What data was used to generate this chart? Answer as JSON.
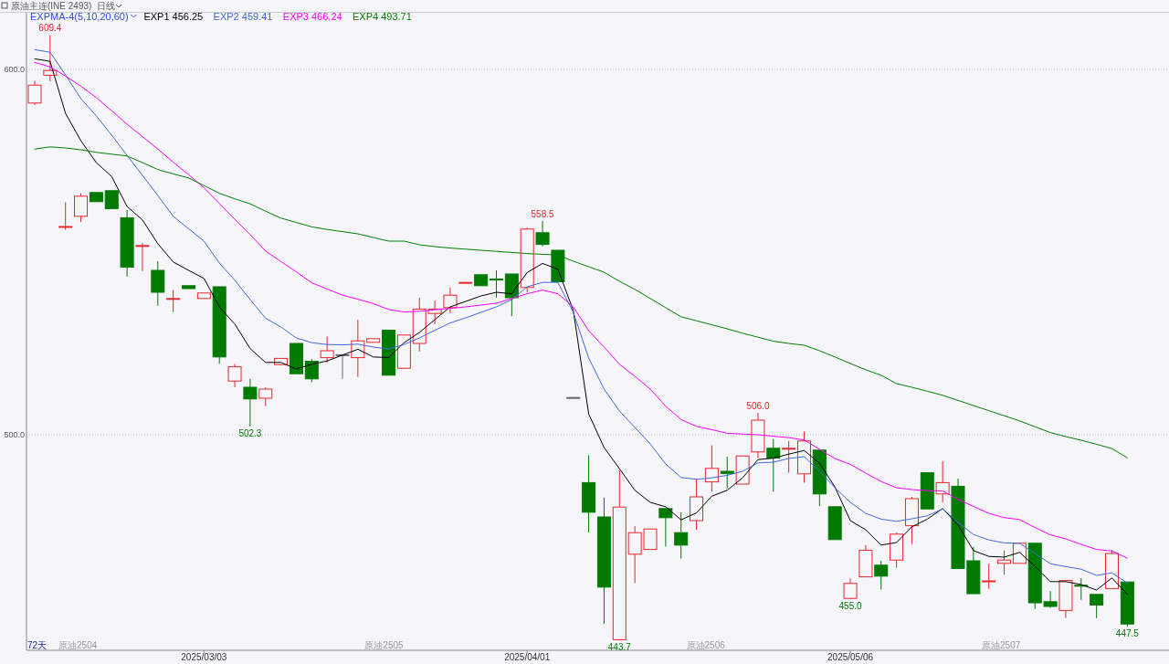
{
  "chart_data": {
    "type": "candlestick",
    "title": "原油主连(INE 2493)",
    "subtitle": "日线",
    "legend_title": "EXPMA-4(5,10,20,60)",
    "legend": "top left",
    "grid": "y",
    "categories": [
      null,
      null,
      null,
      null,
      null,
      null,
      null,
      null,
      null,
      null,
      null,
      "2025/03/03",
      null,
      null,
      null,
      null,
      null,
      null,
      null,
      null,
      null,
      null,
      null,
      null,
      null,
      null,
      null,
      null,
      null,
      null,
      null,
      null,
      "2025/04/01",
      null,
      null,
      null,
      null,
      null,
      null,
      null,
      null,
      null,
      null,
      null,
      null,
      null,
      null,
      null,
      null,
      null,
      null,
      null,
      null,
      "2025/05/06",
      null,
      null,
      null,
      null,
      null,
      null,
      null,
      null,
      null,
      null,
      null,
      null,
      null,
      null,
      null,
      null,
      null,
      null
    ],
    "ylim": [
      441,
      615.5
    ],
    "yticks": [
      {
        "value": 500,
        "label": "500.0"
      },
      {
        "value": 600,
        "label": "600.0"
      }
    ],
    "ohlc": [
      [
        590.8,
        596.9,
        590.3,
        595.7
      ],
      [
        598.4,
        609.4,
        596.7,
        599.7
      ],
      [
        556.8,
        563.6,
        556.1,
        557.0
      ],
      [
        559.8,
        566.1,
        558.2,
        565.3
      ],
      [
        566.3,
        566.3,
        563.8,
        563.8
      ],
      [
        566.8,
        566.8,
        561.9,
        561.9
      ],
      [
        559.4,
        561.5,
        543.3,
        545.9
      ],
      [
        551.7,
        552.5,
        544.8,
        551.8
      ],
      [
        545.0,
        547.5,
        535.3,
        539.0
      ],
      [
        537.1,
        539.6,
        533.6,
        537.3
      ],
      [
        540.8,
        540.8,
        540.0,
        540.0
      ],
      [
        537.3,
        538.8,
        537.3,
        538.8
      ],
      [
        540.5,
        540.5,
        519.4,
        521.3
      ],
      [
        514.7,
        519.4,
        513.0,
        518.6
      ],
      [
        513.0,
        515.3,
        502.3,
        509.8
      ],
      [
        510.0,
        513.0,
        507.8,
        512.5
      ],
      [
        519.2,
        521.0,
        519.0,
        520.9
      ],
      [
        525.0,
        525.0,
        516.7,
        516.7
      ],
      [
        520.1,
        520.7,
        514.4,
        515.3
      ],
      [
        521.1,
        526.9,
        519.8,
        523.0
      ],
      [
        521.9,
        521.9,
        515.3,
        521.9
      ],
      [
        521.1,
        531.5,
        515.8,
        525.7
      ],
      [
        525.3,
        526.3,
        525.3,
        526.3
      ],
      [
        528.6,
        528.6,
        516.3,
        516.3
      ],
      [
        518.2,
        527.3,
        518.0,
        527.3
      ],
      [
        525.0,
        537.5,
        522.8,
        534.4
      ],
      [
        533.2,
        536.7,
        530.3,
        534.4
      ],
      [
        534.8,
        540.3,
        533.3,
        538.2
      ],
      [
        541.6,
        541.8,
        541.5,
        541.7
      ],
      [
        543.8,
        543.8,
        540.8,
        540.8
      ],
      [
        542.6,
        545.0,
        537.5,
        542.5
      ],
      [
        544.0,
        544.0,
        532.5,
        537.5
      ],
      [
        540.3,
        556.7,
        539.0,
        556.3
      ],
      [
        555.3,
        558.5,
        551.5,
        552.1
      ],
      [
        550.5,
        550.5,
        541.9,
        541.9
      ],
      [
        510.2,
        510.2,
        510.2,
        510.2
      ],
      [
        486.9,
        494.4,
        473.3,
        478.8
      ],
      [
        477.5,
        482.8,
        448.2,
        458.3
      ],
      [
        443.9,
        490.3,
        443.7,
        480.2
      ],
      [
        467.3,
        475.0,
        459.4,
        473.2
      ],
      [
        468.6,
        474.2,
        468.6,
        474.2
      ],
      [
        479.8,
        479.8,
        469.4,
        477.3
      ],
      [
        473.2,
        478.8,
        466.1,
        469.8
      ],
      [
        476.5,
        488.0,
        474.0,
        483.0
      ],
      [
        487.1,
        497.1,
        484.4,
        490.8
      ],
      [
        490.0,
        494.0,
        485.3,
        489.4
      ],
      [
        486.5,
        494.2,
        486.5,
        494.2
      ],
      [
        495.3,
        506.0,
        493.6,
        504.0
      ],
      [
        496.3,
        498.8,
        484.4,
        493.6
      ],
      [
        496.2,
        498.3,
        489.6,
        496.3
      ],
      [
        489.3,
        500.9,
        486.9,
        498.3
      ],
      [
        495.8,
        495.8,
        480.5,
        483.8
      ],
      [
        480.3,
        480.3,
        471.3,
        471.3
      ],
      [
        455.2,
        460.7,
        455.0,
        459.3
      ],
      [
        461.1,
        469.8,
        461.0,
        468.4
      ],
      [
        464.3,
        465.5,
        457.6,
        461.3
      ],
      [
        465.7,
        473.2,
        463.6,
        472.8
      ],
      [
        475.1,
        483.0,
        470.1,
        482.5
      ],
      [
        489.6,
        489.6,
        479.7,
        479.7
      ],
      [
        483.8,
        492.8,
        481.5,
        486.9
      ],
      [
        485.9,
        488.0,
        463.4,
        463.4
      ],
      [
        465.5,
        469.3,
        456.5,
        456.5
      ],
      [
        459.9,
        464.7,
        457.8,
        460.0
      ],
      [
        464.8,
        468.3,
        461.7,
        465.7
      ],
      [
        464.8,
        470.3,
        464.8,
        470.3
      ],
      [
        470.3,
        470.3,
        452.3,
        454.0
      ],
      [
        454.3,
        457.2,
        452.6,
        453.0
      ],
      [
        451.9,
        460.1,
        449.8,
        460.1
      ],
      [
        458.8,
        460.7,
        454.8,
        458.7
      ],
      [
        456.3,
        456.3,
        449.8,
        453.4
      ],
      [
        457.9,
        468.4,
        457.9,
        467.5
      ],
      [
        459.7,
        459.7,
        447.5,
        448.2
      ]
    ],
    "value_labels": [
      null,
      "609.4",
      null,
      null,
      null,
      null,
      null,
      null,
      null,
      null,
      null,
      null,
      null,
      null,
      "502.3",
      null,
      null,
      null,
      null,
      null,
      null,
      null,
      null,
      null,
      null,
      null,
      null,
      null,
      null,
      null,
      null,
      null,
      null,
      "558.5",
      null,
      null,
      null,
      null,
      "443.7",
      null,
      null,
      null,
      null,
      null,
      null,
      null,
      null,
      "506.0",
      null,
      null,
      null,
      null,
      null,
      "455.0",
      null,
      null,
      null,
      null,
      null,
      null,
      null,
      null,
      null,
      null,
      null,
      null,
      null,
      null,
      null,
      null,
      null,
      "447.5"
    ],
    "series": [
      {
        "name": "EXP1 456.25",
        "type": "line",
        "color": "#000000",
        "values": [
          602.9,
          602.2,
          588.0,
          580.5,
          574.5,
          570.7,
          562.5,
          558.8,
          552.3,
          547.3,
          545.0,
          542.8,
          535.0,
          530.3,
          523.6,
          519.8,
          519.8,
          518.0,
          519.3,
          520.2,
          521.8,
          523.4,
          521.3,
          521.1,
          525.2,
          528.0,
          531.5,
          535.0,
          536.5,
          538.0,
          539.0,
          538.6,
          544.4,
          546.9,
          545.3,
          534.0,
          505.7,
          496.5,
          490.7,
          484.8,
          481.5,
          480.3,
          476.7,
          478.6,
          483.2,
          484.8,
          488.2,
          493.2,
          493.6,
          494.7,
          495.7,
          492.2,
          485.7,
          476.5,
          474.0,
          469.8,
          470.5,
          474.8,
          476.9,
          479.8,
          475.3,
          468.3,
          466.7,
          466.5,
          467.8,
          464.0,
          459.8,
          459.8,
          459.0,
          457.5,
          460.8,
          456.3
        ]
      },
      {
        "name": "EXP2 459.41",
        "type": "line",
        "color": "#4169e1",
        "values": [
          605.4,
          604.7,
          598.5,
          592.0,
          587.3,
          582.0,
          576.5,
          571.0,
          565.5,
          559.8,
          556.4,
          553.0,
          547.0,
          542.3,
          537.0,
          531.9,
          529.5,
          526.5,
          525.2,
          524.7,
          524.6,
          524.8,
          524.0,
          523.5,
          524.7,
          526.5,
          528.6,
          530.6,
          532.0,
          533.5,
          535.0,
          537.0,
          540.5,
          541.7,
          541.7,
          533.5,
          521.0,
          512.5,
          506.5,
          502.0,
          497.5,
          492.0,
          488.3,
          487.8,
          488.2,
          488.9,
          490.0,
          492.3,
          492.5,
          493.5,
          494.0,
          490.0,
          485.5,
          481.5,
          478.5,
          476.9,
          476.3,
          477.0,
          477.8,
          479.7,
          476.0,
          472.7,
          471.2,
          470.4,
          470.3,
          467.5,
          464.7,
          463.9,
          463.2,
          461.5,
          462.2,
          459.4
        ]
      },
      {
        "name": "EXP3 466.24",
        "type": "line",
        "color": "#ff00ff",
        "values": [
          601.9,
          600.7,
          598.2,
          595.4,
          592.3,
          588.7,
          585.0,
          581.6,
          578.2,
          574.6,
          571.2,
          567.6,
          563.3,
          559.0,
          554.8,
          550.3,
          547.4,
          544.6,
          541.6,
          539.9,
          538.2,
          537.1,
          535.9,
          534.3,
          533.6,
          533.8,
          534.2,
          534.6,
          535.0,
          535.5,
          536.0,
          537.3,
          538.6,
          539.6,
          538.6,
          535.0,
          528.5,
          524.0,
          519.3,
          516.0,
          512.5,
          507.8,
          504.2,
          502.3,
          501.4,
          500.4,
          500.2,
          500.0,
          499.6,
          499.2,
          498.6,
          496.0,
          493.5,
          491.9,
          489.5,
          487.2,
          485.5,
          485.0,
          484.7,
          484.6,
          482.3,
          480.4,
          478.5,
          477.3,
          476.8,
          474.6,
          472.6,
          471.5,
          470.0,
          468.6,
          468.2,
          466.2
        ]
      },
      {
        "name": "EXP4 493.71",
        "type": "line",
        "color": "#008000",
        "values": [
          578.2,
          578.8,
          578.5,
          578.0,
          577.3,
          576.8,
          576.3,
          574.5,
          572.6,
          571.4,
          570.3,
          568.2,
          566.1,
          564.6,
          563.2,
          561.2,
          559.3,
          558.1,
          556.9,
          556.2,
          555.6,
          555.0,
          554.0,
          553.0,
          553.0,
          552.0,
          551.5,
          551.1,
          550.8,
          550.5,
          550.2,
          549.9,
          549.6,
          549.4,
          549.2,
          547.5,
          546.0,
          544.5,
          542.0,
          539.8,
          537.3,
          534.8,
          532.3,
          531.2,
          530.1,
          529.0,
          527.8,
          526.7,
          525.6,
          525.0,
          524.5,
          523.0,
          521.3,
          519.5,
          517.8,
          516.3,
          514.0,
          513.0,
          511.9,
          510.8,
          509.4,
          508.0,
          506.6,
          505.2,
          503.8,
          502.2,
          500.6,
          499.5,
          498.5,
          497.4,
          496.2,
          493.7
        ]
      }
    ],
    "annotations": [
      "72天",
      "原油2504",
      "原油2505",
      "原油2506",
      "原油2507"
    ]
  }
}
